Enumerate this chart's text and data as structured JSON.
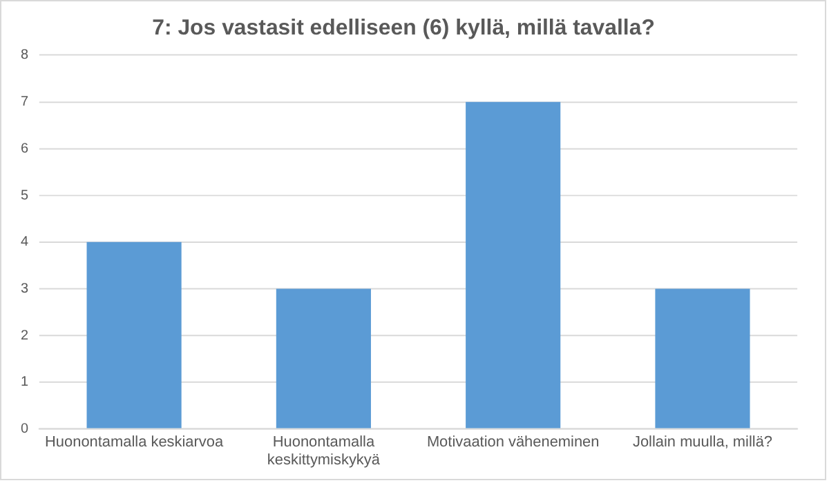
{
  "chart_data": {
    "type": "bar",
    "title": "7: Jos vastasit edelliseen (6) kyllä, millä tavalla?",
    "categories": [
      "Huonontamalla keskiarvoa",
      "Huonontamalla keskittymiskykyä",
      "Motivaation väheneminen",
      "Jollain muulla, millä?"
    ],
    "values": [
      4,
      3,
      7,
      3
    ],
    "color": "#5b9bd5",
    "ylim": [
      0,
      8
    ],
    "yticks": [
      0,
      1,
      2,
      3,
      4,
      5,
      6,
      7,
      8
    ],
    "grid": "y"
  }
}
